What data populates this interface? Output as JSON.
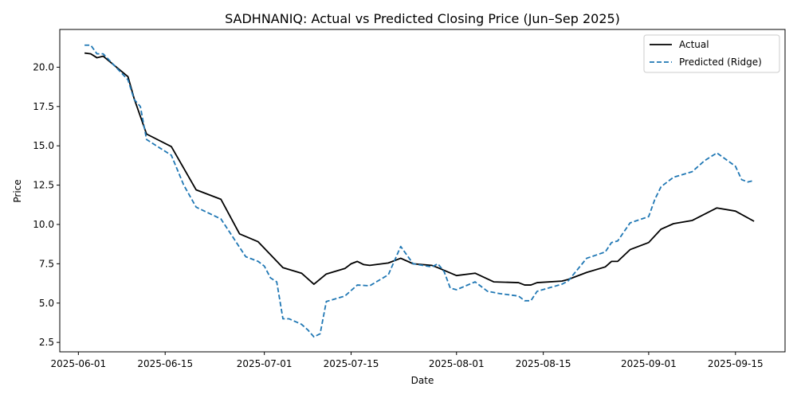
{
  "chart_data": {
    "type": "line",
    "title": "SADHNANIQ: Actual vs Predicted Closing Price (Jun–Sep 2025)",
    "xlabel": "Date",
    "ylabel": "Price",
    "xlim": [
      "2025-05-29",
      "2025-09-23"
    ],
    "ylim": [
      1.9,
      22.4
    ],
    "x_ticks": [
      "2025-06-01",
      "2025-06-15",
      "2025-07-01",
      "2025-07-15",
      "2025-08-01",
      "2025-08-15",
      "2025-09-01",
      "2025-09-15"
    ],
    "y_ticks": [
      2.5,
      5.0,
      7.5,
      10.0,
      12.5,
      15.0,
      17.5,
      20.0
    ],
    "y_tick_labels": [
      "2.5",
      "5.0",
      "7.5",
      "10.0",
      "12.5",
      "15.0",
      "17.5",
      "20.0"
    ],
    "grid": false,
    "legend": {
      "position": "top-right"
    },
    "series": [
      {
        "name": "Actual",
        "color": "#000000",
        "style": "solid",
        "points": [
          [
            "2025-06-02",
            20.9
          ],
          [
            "2025-06-03",
            20.85
          ],
          [
            "2025-06-04",
            20.6
          ],
          [
            "2025-06-05",
            20.7
          ],
          [
            "2025-06-09",
            19.4
          ],
          [
            "2025-06-10",
            18.0
          ],
          [
            "2025-06-12",
            15.75
          ],
          [
            "2025-06-16",
            14.95
          ],
          [
            "2025-06-20",
            12.2
          ],
          [
            "2025-06-24",
            11.6
          ],
          [
            "2025-06-27",
            9.4
          ],
          [
            "2025-06-30",
            8.9
          ],
          [
            "2025-07-04",
            7.25
          ],
          [
            "2025-07-07",
            6.9
          ],
          [
            "2025-07-09",
            6.2
          ],
          [
            "2025-07-11",
            6.85
          ],
          [
            "2025-07-14",
            7.2
          ],
          [
            "2025-07-15",
            7.5
          ],
          [
            "2025-07-16",
            7.65
          ],
          [
            "2025-07-17",
            7.45
          ],
          [
            "2025-07-18",
            7.4
          ],
          [
            "2025-07-21",
            7.55
          ],
          [
            "2025-07-23",
            7.85
          ],
          [
            "2025-07-25",
            7.5
          ],
          [
            "2025-07-28",
            7.4
          ],
          [
            "2025-07-29",
            7.25
          ],
          [
            "2025-08-01",
            6.75
          ],
          [
            "2025-08-04",
            6.9
          ],
          [
            "2025-08-07",
            6.35
          ],
          [
            "2025-08-11",
            6.3
          ],
          [
            "2025-08-12",
            6.15
          ],
          [
            "2025-08-13",
            6.15
          ],
          [
            "2025-08-14",
            6.3
          ],
          [
            "2025-08-18",
            6.4
          ],
          [
            "2025-08-19",
            6.5
          ],
          [
            "2025-08-22",
            6.95
          ],
          [
            "2025-08-25",
            7.3
          ],
          [
            "2025-08-26",
            7.65
          ],
          [
            "2025-08-27",
            7.65
          ],
          [
            "2025-08-29",
            8.4
          ],
          [
            "2025-09-01",
            8.85
          ],
          [
            "2025-09-03",
            9.7
          ],
          [
            "2025-09-05",
            10.05
          ],
          [
            "2025-09-08",
            10.25
          ],
          [
            "2025-09-12",
            11.05
          ],
          [
            "2025-09-15",
            10.85
          ],
          [
            "2025-09-18",
            10.2
          ]
        ]
      },
      {
        "name": "Predicted (Ridge)",
        "color": "#1f77b4",
        "style": "dashed",
        "points": [
          [
            "2025-06-02",
            21.4
          ],
          [
            "2025-06-03",
            21.4
          ],
          [
            "2025-06-04",
            20.85
          ],
          [
            "2025-06-05",
            20.85
          ],
          [
            "2025-06-09",
            19.2
          ],
          [
            "2025-06-10",
            17.95
          ],
          [
            "2025-06-11",
            17.5
          ],
          [
            "2025-06-12",
            15.4
          ],
          [
            "2025-06-16",
            14.4
          ],
          [
            "2025-06-18",
            12.5
          ],
          [
            "2025-06-20",
            11.1
          ],
          [
            "2025-06-24",
            10.35
          ],
          [
            "2025-06-28",
            7.95
          ],
          [
            "2025-06-30",
            7.65
          ],
          [
            "2025-07-01",
            7.35
          ],
          [
            "2025-07-02",
            6.6
          ],
          [
            "2025-07-03",
            6.35
          ],
          [
            "2025-07-04",
            4.0
          ],
          [
            "2025-07-05",
            4.0
          ],
          [
            "2025-07-07",
            3.65
          ],
          [
            "2025-07-08",
            3.3
          ],
          [
            "2025-07-09",
            2.85
          ],
          [
            "2025-07-10",
            3.05
          ],
          [
            "2025-07-11",
            5.1
          ],
          [
            "2025-07-14",
            5.45
          ],
          [
            "2025-07-16",
            6.15
          ],
          [
            "2025-07-18",
            6.1
          ],
          [
            "2025-07-21",
            6.8
          ],
          [
            "2025-07-23",
            8.6
          ],
          [
            "2025-07-25",
            7.5
          ],
          [
            "2025-07-28",
            7.3
          ],
          [
            "2025-07-29",
            7.5
          ],
          [
            "2025-07-30",
            7.0
          ],
          [
            "2025-07-31",
            5.95
          ],
          [
            "2025-08-01",
            5.85
          ],
          [
            "2025-08-04",
            6.35
          ],
          [
            "2025-08-06",
            5.75
          ],
          [
            "2025-08-08",
            5.6
          ],
          [
            "2025-08-11",
            5.45
          ],
          [
            "2025-08-12",
            5.15
          ],
          [
            "2025-08-13",
            5.15
          ],
          [
            "2025-08-14",
            5.75
          ],
          [
            "2025-08-18",
            6.2
          ],
          [
            "2025-08-19",
            6.4
          ],
          [
            "2025-08-22",
            7.85
          ],
          [
            "2025-08-25",
            8.25
          ],
          [
            "2025-08-26",
            8.85
          ],
          [
            "2025-08-27",
            8.95
          ],
          [
            "2025-08-29",
            10.1
          ],
          [
            "2025-09-01",
            10.5
          ],
          [
            "2025-09-02",
            11.6
          ],
          [
            "2025-09-03",
            12.4
          ],
          [
            "2025-09-05",
            13.0
          ],
          [
            "2025-09-08",
            13.35
          ],
          [
            "2025-09-10",
            14.05
          ],
          [
            "2025-09-12",
            14.55
          ],
          [
            "2025-09-15",
            13.7
          ],
          [
            "2025-09-16",
            12.85
          ],
          [
            "2025-09-17",
            12.7
          ],
          [
            "2025-09-18",
            12.8
          ]
        ]
      }
    ]
  }
}
